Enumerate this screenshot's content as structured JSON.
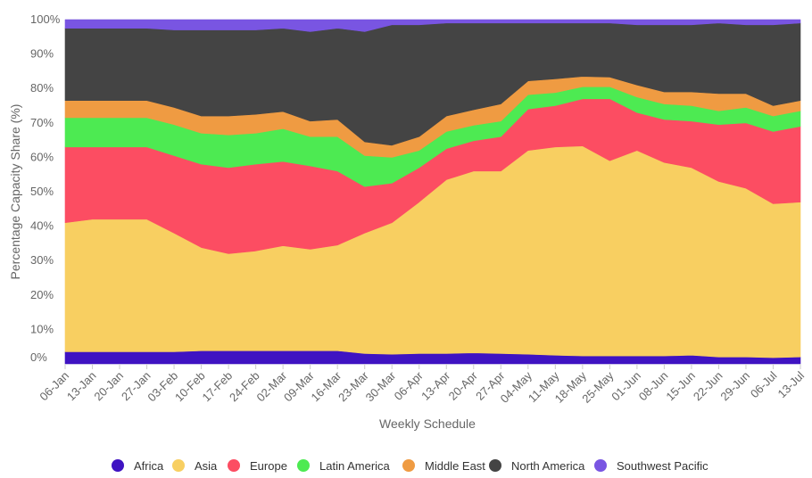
{
  "chart_data": {
    "type": "area",
    "stacked": true,
    "normalized_percent": true,
    "xlabel": "Weekly Schedule",
    "ylabel": "Percentage Capacity Share (%)",
    "ylim": [
      0,
      100
    ],
    "yticks": [
      0,
      10,
      20,
      30,
      40,
      50,
      60,
      70,
      80,
      90,
      100
    ],
    "ytick_labels": [
      "0%",
      "10%",
      "20%",
      "30%",
      "40%",
      "50%",
      "60%",
      "70%",
      "80%",
      "90%",
      "100%"
    ],
    "grid": true,
    "legend_position": "bottom",
    "x": [
      "06-Jan",
      "13-Jan",
      "20-Jan",
      "27-Jan",
      "03-Feb",
      "10-Feb",
      "17-Feb",
      "24-Feb",
      "02-Mar",
      "09-Mar",
      "16-Mar",
      "23-Mar",
      "30-Mar",
      "06-Apr",
      "13-Apr",
      "20-Apr",
      "27-Apr",
      "04-May",
      "11-May",
      "18-May",
      "25-May",
      "01-Jun",
      "08-Jun",
      "15-Jun",
      "22-Jun",
      "29-Jun",
      "06-Jul",
      "13-Jul"
    ],
    "series": [
      {
        "name": "Africa",
        "color": "#3f13c2",
        "values": [
          3.5,
          3.5,
          3.5,
          3.5,
          3.5,
          3.8,
          3.8,
          3.8,
          3.8,
          3.8,
          3.8,
          3.0,
          2.8,
          3.0,
          3.0,
          3.2,
          3.0,
          2.8,
          2.5,
          2.3,
          2.3,
          2.3,
          2.3,
          2.5,
          2.0,
          2.0,
          1.8,
          2.0
        ]
      },
      {
        "name": "Asia",
        "color": "#f8cf61",
        "values": [
          37.5,
          38.5,
          38.5,
          38.5,
          34.5,
          30.0,
          28.2,
          29.0,
          30.5,
          29.5,
          30.7,
          35.0,
          38.2,
          44.0,
          50.5,
          52.8,
          53.0,
          59.2,
          60.5,
          61.0,
          56.7,
          59.7,
          56.2,
          54.5,
          51.0,
          49.0,
          44.7,
          45.0
        ]
      },
      {
        "name": "Europe",
        "color": "#fc4d62",
        "values": [
          22.0,
          21.0,
          21.0,
          21.0,
          22.5,
          24.2,
          25.0,
          25.2,
          24.5,
          24.2,
          21.5,
          13.5,
          11.5,
          10.0,
          9.0,
          8.8,
          10.0,
          12.0,
          12.0,
          13.7,
          18.0,
          11.0,
          12.5,
          13.5,
          16.5,
          19.0,
          21.0,
          22.0
        ]
      },
      {
        "name": "Latin America",
        "color": "#4dea52",
        "values": [
          8.5,
          8.5,
          8.5,
          8.5,
          9.0,
          9.0,
          9.5,
          9.0,
          9.5,
          8.5,
          10.0,
          9.0,
          7.5,
          5.0,
          5.0,
          4.5,
          4.5,
          4.2,
          3.8,
          3.5,
          3.5,
          4.5,
          4.5,
          4.5,
          4.0,
          4.5,
          4.5,
          4.5
        ]
      },
      {
        "name": "Middle East",
        "color": "#ef9b42",
        "values": [
          5.0,
          5.0,
          5.0,
          5.0,
          5.0,
          5.0,
          5.5,
          5.5,
          5.0,
          4.5,
          5.0,
          4.0,
          3.5,
          4.0,
          4.5,
          4.5,
          5.0,
          4.0,
          4.0,
          3.0,
          2.8,
          3.5,
          3.5,
          4.0,
          5.0,
          4.0,
          3.0,
          3.0
        ]
      },
      {
        "name": "North America",
        "color": "#444444",
        "values": [
          21.0,
          21.0,
          21.0,
          21.0,
          22.5,
          25.0,
          25.0,
          24.5,
          24.2,
          26.0,
          26.5,
          32.0,
          35.0,
          32.5,
          27.0,
          25.2,
          23.5,
          16.8,
          16.2,
          15.5,
          15.7,
          17.5,
          19.5,
          19.5,
          20.5,
          20.0,
          23.5,
          22.5
        ]
      },
      {
        "name": "Southwest Pacific",
        "color": "#7955e2",
        "values": [
          2.5,
          2.5,
          2.5,
          2.5,
          3.0,
          3.0,
          3.0,
          3.0,
          2.5,
          3.5,
          2.5,
          3.5,
          1.5,
          1.5,
          1.0,
          1.0,
          1.0,
          1.0,
          1.0,
          1.0,
          1.0,
          1.5,
          1.5,
          1.5,
          1.0,
          1.5,
          1.5,
          1.0
        ]
      }
    ]
  }
}
